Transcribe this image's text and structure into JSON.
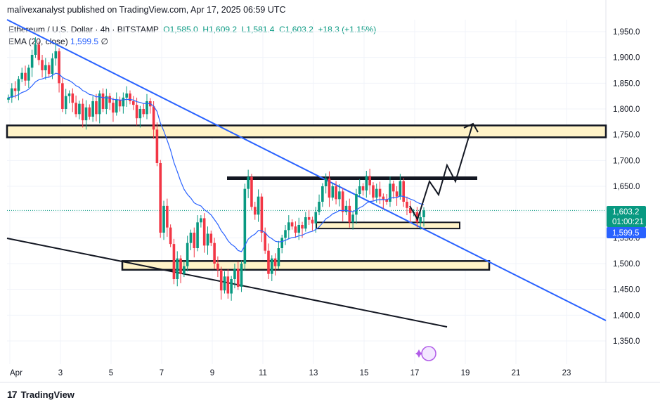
{
  "header": {
    "published_line": "malivexanalyst published on TradingView.com, Apr 17, 2025 06:59 UTC"
  },
  "legend": {
    "symbol": "Ethereum / U.S. Dollar · 4h · BITSTAMP",
    "open": "O1,585.0",
    "high": "H1,609.2",
    "low": "L1,581.4",
    "close": "C1,603.2",
    "change": "+18.3 (+1.15%)",
    "ema_name": "EMA (20, close)",
    "ema_value": "1,599.5",
    "ema_suffix": "∅"
  },
  "price_labels": {
    "last_price": "1,603.2",
    "countdown": "01:00:21",
    "ema_price": "1,599.5"
  },
  "brand": {
    "name": "TradingView"
  },
  "colors": {
    "up": "#089981",
    "down": "#f23645",
    "ema": "#2962ff",
    "trendline": "#2962ff",
    "zone_fill": "#fff3c8",
    "grid": "#f0f3fa"
  },
  "chart_data": {
    "type": "candlestick",
    "timeframe": "4h",
    "y_ticks": [
      1350,
      1400,
      1450,
      1500,
      1550,
      1600,
      1650,
      1700,
      1750,
      1800,
      1850,
      1900,
      1950
    ],
    "ylim": [
      1300,
      1995
    ],
    "x_tick_labels": [
      {
        "label": "Apr",
        "day": 1
      },
      {
        "label": "3",
        "day": 3
      },
      {
        "label": "5",
        "day": 5
      },
      {
        "label": "7",
        "day": 7
      },
      {
        "label": "9",
        "day": 9
      },
      {
        "label": "11",
        "day": 11
      },
      {
        "label": "13",
        "day": 13
      },
      {
        "label": "15",
        "day": 15
      },
      {
        "label": "17",
        "day": 17
      },
      {
        "label": "19",
        "day": 19
      },
      {
        "label": "21",
        "day": 21
      },
      {
        "label": "23",
        "day": 23
      }
    ],
    "grid": true,
    "closes": [
      1822,
      1840,
      1835,
      1858,
      1870,
      1855,
      1880,
      1905,
      1925,
      1895,
      1875,
      1885,
      1868,
      1898,
      1912,
      1850,
      1800,
      1825,
      1830,
      1812,
      1790,
      1810,
      1778,
      1803,
      1785,
      1815,
      1790,
      1830,
      1800,
      1825,
      1812,
      1793,
      1818,
      1805,
      1822,
      1830,
      1815,
      1808,
      1782,
      1800,
      1790,
      1815,
      1805,
      1760,
      1695,
      1560,
      1612,
      1570,
      1538,
      1470,
      1510,
      1480,
      1495,
      1540,
      1560,
      1530,
      1580,
      1588,
      1535,
      1558,
      1540,
      1500,
      1488,
      1448,
      1475,
      1442,
      1470,
      1490,
      1455,
      1500,
      1645,
      1668,
      1610,
      1595,
      1630,
      1560,
      1525,
      1480,
      1510,
      1495,
      1530,
      1550,
      1565,
      1580,
      1572,
      1560,
      1575,
      1568,
      1590,
      1585,
      1578,
      1600,
      1620,
      1650,
      1665,
      1628,
      1650,
      1625,
      1640,
      1600,
      1612,
      1580,
      1595,
      1635,
      1650,
      1642,
      1670,
      1652,
      1628,
      1645,
      1630,
      1625,
      1620,
      1655,
      1640,
      1630,
      1660,
      1620,
      1608,
      1598,
      1600,
      1580,
      1590,
      1603.2
    ],
    "ema20_close": 1599.5,
    "last_close": 1603.2,
    "zones": [
      {
        "name": "upper-resistance-zone",
        "from": 1745,
        "to": 1768
      },
      {
        "name": "lower-support-zone",
        "from": 1488,
        "to": 1505
      }
    ],
    "levels": [
      {
        "name": "range-top-line",
        "price": 1665
      },
      {
        "name": "current-support-box",
        "from": 1568,
        "to": 1580
      }
    ]
  }
}
